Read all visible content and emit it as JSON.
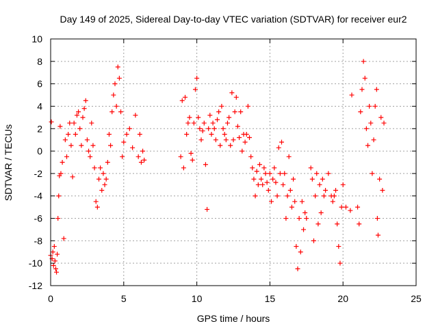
{
  "chart_data": {
    "type": "scatter",
    "title": "Day 149 of 2025, Sidereal Day-to-day VTEC variation (SDTVAR) for receiver eur2",
    "xlabel": "GPS time / hours",
    "ylabel": "SDTVAR / TECUs",
    "xlim": [
      0,
      25
    ],
    "ylim": [
      -12,
      10
    ],
    "xticks": [
      0,
      5,
      10,
      15,
      20,
      25
    ],
    "yticks": [
      -12,
      -10,
      -8,
      -6,
      -4,
      -2,
      0,
      2,
      4,
      6,
      8,
      10
    ],
    "grid": true,
    "marker": "+",
    "marker_color": "#ff0000",
    "series": [
      {
        "name": "SDTVAR",
        "points": [
          [
            0.0,
            -9.3
          ],
          [
            0.05,
            2.6
          ],
          [
            0.1,
            -9.6
          ],
          [
            0.15,
            -9.0
          ],
          [
            0.2,
            -10.2
          ],
          [
            0.25,
            -8.5
          ],
          [
            0.3,
            -9.8
          ],
          [
            0.35,
            -10.5
          ],
          [
            0.4,
            -10.8
          ],
          [
            0.45,
            -9.2
          ],
          [
            0.5,
            -6.0
          ],
          [
            0.55,
            -4.0
          ],
          [
            0.6,
            -2.2
          ],
          [
            0.65,
            2.2
          ],
          [
            0.7,
            -2.0
          ],
          [
            0.8,
            -1.0
          ],
          [
            0.9,
            -7.8
          ],
          [
            1.0,
            1.0
          ],
          [
            1.1,
            -0.5
          ],
          [
            1.2,
            1.5
          ],
          [
            1.3,
            2.5
          ],
          [
            1.4,
            0.5
          ],
          [
            1.5,
            -2.3
          ],
          [
            1.6,
            2.5
          ],
          [
            1.7,
            1.5
          ],
          [
            1.8,
            3.2
          ],
          [
            1.9,
            3.5
          ],
          [
            2.0,
            2.0
          ],
          [
            2.1,
            0.5
          ],
          [
            2.2,
            3.0
          ],
          [
            2.3,
            3.8
          ],
          [
            2.4,
            4.5
          ],
          [
            2.5,
            1.0
          ],
          [
            2.6,
            0.0
          ],
          [
            2.7,
            -0.5
          ],
          [
            2.8,
            2.5
          ],
          [
            2.9,
            0.5
          ],
          [
            3.0,
            -1.5
          ],
          [
            3.1,
            -4.5
          ],
          [
            3.2,
            -5.0
          ],
          [
            3.3,
            -2.5
          ],
          [
            3.4,
            -1.5
          ],
          [
            3.5,
            -3.5
          ],
          [
            3.6,
            -2.0
          ],
          [
            3.7,
            -3.0
          ],
          [
            3.8,
            -2.5
          ],
          [
            3.9,
            -1.0
          ],
          [
            4.0,
            1.5
          ],
          [
            4.1,
            0.5
          ],
          [
            4.2,
            3.5
          ],
          [
            4.3,
            5.0
          ],
          [
            4.4,
            6.0
          ],
          [
            4.5,
            4.0
          ],
          [
            4.6,
            7.5
          ],
          [
            4.7,
            6.5
          ],
          [
            4.8,
            3.5
          ],
          [
            4.9,
            -0.5
          ],
          [
            5.0,
            0.8
          ],
          [
            5.2,
            1.5
          ],
          [
            5.4,
            2.0
          ],
          [
            5.6,
            0.3
          ],
          [
            5.8,
            3.2
          ],
          [
            6.0,
            -0.5
          ],
          [
            6.1,
            1.5
          ],
          [
            6.2,
            -1.0
          ],
          [
            6.3,
            0.0
          ],
          [
            6.4,
            -0.8
          ],
          [
            8.9,
            -0.5
          ],
          [
            9.0,
            4.5
          ],
          [
            9.1,
            -1.5
          ],
          [
            9.2,
            4.8
          ],
          [
            9.3,
            1.5
          ],
          [
            9.4,
            2.5
          ],
          [
            9.5,
            3.0
          ],
          [
            9.6,
            -0.2
          ],
          [
            9.7,
            -0.8
          ],
          [
            9.8,
            2.5
          ],
          [
            9.9,
            5.5
          ],
          [
            10.0,
            6.5
          ],
          [
            10.1,
            3.0
          ],
          [
            10.2,
            2.0
          ],
          [
            10.3,
            1.0
          ],
          [
            10.4,
            1.8
          ],
          [
            10.5,
            2.5
          ],
          [
            10.6,
            -1.2
          ],
          [
            10.7,
            -5.2
          ],
          [
            10.8,
            2.0
          ],
          [
            10.9,
            3.2
          ],
          [
            11.0,
            1.5
          ],
          [
            11.1,
            2.5
          ],
          [
            11.2,
            2.0
          ],
          [
            11.3,
            1.0
          ],
          [
            11.4,
            2.8
          ],
          [
            11.5,
            3.5
          ],
          [
            11.6,
            0.5
          ],
          [
            11.7,
            4.0
          ],
          [
            11.8,
            2.0
          ],
          [
            11.9,
            1.5
          ],
          [
            12.0,
            1.0
          ],
          [
            12.1,
            2.5
          ],
          [
            12.2,
            3.0
          ],
          [
            12.3,
            0.5
          ],
          [
            12.4,
            5.2
          ],
          [
            12.5,
            1.0
          ],
          [
            12.6,
            3.5
          ],
          [
            12.7,
            4.8
          ],
          [
            12.8,
            2.2
          ],
          [
            12.9,
            1.2
          ],
          [
            13.0,
            3.5
          ],
          [
            13.1,
            0.0
          ],
          [
            13.2,
            1.5
          ],
          [
            13.3,
            0.8
          ],
          [
            13.4,
            1.5
          ],
          [
            13.5,
            4.0
          ],
          [
            13.6,
            1.2
          ],
          [
            13.7,
            -0.5
          ],
          [
            13.8,
            -1.5
          ],
          [
            13.9,
            -2.5
          ],
          [
            14.0,
            -4.0
          ],
          [
            14.1,
            -1.8
          ],
          [
            14.2,
            -3.0
          ],
          [
            14.3,
            -1.2
          ],
          [
            14.4,
            -2.5
          ],
          [
            14.5,
            -3.0
          ],
          [
            14.6,
            -1.5
          ],
          [
            14.7,
            -2.0
          ],
          [
            14.8,
            -2.8
          ],
          [
            14.9,
            -3.5
          ],
          [
            15.0,
            -2.0
          ],
          [
            15.1,
            -4.5
          ],
          [
            15.2,
            -2.5
          ],
          [
            15.3,
            -1.5
          ],
          [
            15.4,
            -2.8
          ],
          [
            15.5,
            -4.0
          ],
          [
            15.6,
            0.3
          ],
          [
            15.7,
            -2.0
          ],
          [
            15.8,
            0.8
          ],
          [
            15.9,
            -3.0
          ],
          [
            16.0,
            -2.0
          ],
          [
            16.1,
            -6.0
          ],
          [
            16.2,
            -4.0
          ],
          [
            16.3,
            -0.5
          ],
          [
            16.4,
            -3.5
          ],
          [
            16.5,
            -5.0
          ],
          [
            16.6,
            -2.5
          ],
          [
            16.7,
            -4.5
          ],
          [
            16.8,
            -8.5
          ],
          [
            16.9,
            -10.5
          ],
          [
            17.0,
            -6.0
          ],
          [
            17.1,
            -9.0
          ],
          [
            17.2,
            -4.5
          ],
          [
            17.3,
            -7.0
          ],
          [
            17.4,
            -5.5
          ],
          [
            17.5,
            -6.0
          ],
          [
            17.8,
            -1.5
          ],
          [
            17.9,
            -2.5
          ],
          [
            18.0,
            -8.0
          ],
          [
            18.1,
            -4.0
          ],
          [
            18.2,
            -2.0
          ],
          [
            18.3,
            -6.5
          ],
          [
            18.4,
            -3.0
          ],
          [
            18.5,
            -5.5
          ],
          [
            18.6,
            -2.5
          ],
          [
            18.7,
            -4.0
          ],
          [
            18.8,
            -3.5
          ],
          [
            19.0,
            -2.0
          ],
          [
            19.2,
            -4.0
          ],
          [
            19.3,
            -4.5
          ],
          [
            19.4,
            -4.0
          ],
          [
            19.5,
            -3.5
          ],
          [
            19.6,
            -6.5
          ],
          [
            19.7,
            -8.5
          ],
          [
            19.8,
            -10.0
          ],
          [
            19.9,
            -5.0
          ],
          [
            20.0,
            -3.0
          ],
          [
            20.2,
            -5.0
          ],
          [
            20.5,
            -5.3
          ],
          [
            20.6,
            5.0
          ],
          [
            21.0,
            -5.0
          ],
          [
            21.1,
            -6.5
          ],
          [
            21.2,
            3.5
          ],
          [
            21.3,
            5.5
          ],
          [
            21.4,
            8.0
          ],
          [
            21.5,
            6.5
          ],
          [
            21.6,
            2.0
          ],
          [
            21.7,
            0.5
          ],
          [
            21.8,
            4.0
          ],
          [
            21.9,
            2.5
          ],
          [
            22.0,
            -2.0
          ],
          [
            22.1,
            1.0
          ],
          [
            22.2,
            4.0
          ],
          [
            22.3,
            5.5
          ],
          [
            22.35,
            -6.0
          ],
          [
            22.4,
            -7.5
          ],
          [
            22.5,
            -2.5
          ],
          [
            22.6,
            3.0
          ],
          [
            22.7,
            -3.5
          ],
          [
            22.8,
            2.5
          ]
        ]
      }
    ]
  }
}
